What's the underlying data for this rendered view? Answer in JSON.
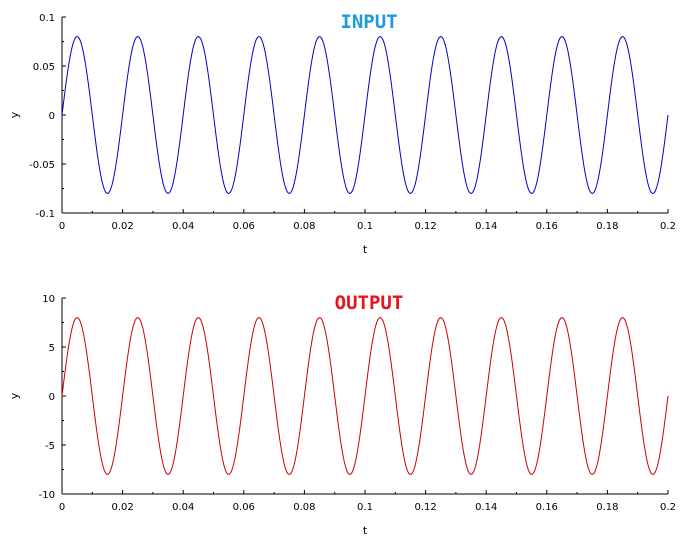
{
  "chart_data": [
    {
      "type": "line",
      "title": "INPUT",
      "title_color": "#1e9be0",
      "xlabel": "t",
      "ylabel": "y",
      "xlim": [
        0,
        0.2
      ],
      "ylim": [
        -0.1,
        0.1
      ],
      "x_ticks": [
        0,
        0.02,
        0.04,
        0.06,
        0.08,
        0.1,
        0.12,
        0.14,
        0.16,
        0.18,
        0.2
      ],
      "x_tick_labels": [
        "0",
        "0.02",
        "0.04",
        "0.06",
        "0.08",
        "0.1",
        "0.12",
        "0.14",
        "0.16",
        "0.18",
        "0.2"
      ],
      "y_ticks": [
        -0.1,
        -0.05,
        0,
        0.05,
        0.1
      ],
      "y_tick_labels": [
        "-0.1",
        "-0.05",
        "0",
        "0.05",
        "0.1"
      ],
      "grid": false,
      "series": [
        {
          "color": "#0000cc",
          "waveform": "sine",
          "amplitude": 0.08,
          "frequency_hz": 50,
          "t_range": [
            0,
            0.2
          ]
        }
      ]
    },
    {
      "type": "line",
      "title": "OUTPUT",
      "title_color": "#e8141e",
      "xlabel": "t",
      "ylabel": "y",
      "xlim": [
        0,
        0.2
      ],
      "ylim": [
        -10,
        10
      ],
      "x_ticks": [
        0,
        0.02,
        0.04,
        0.06,
        0.08,
        0.1,
        0.12,
        0.14,
        0.16,
        0.18,
        0.2
      ],
      "x_tick_labels": [
        "0",
        "0.02",
        "0.04",
        "0.06",
        "0.08",
        "0.1",
        "0.12",
        "0.14",
        "0.16",
        "0.18",
        "0.2"
      ],
      "y_ticks": [
        -10,
        -5,
        0,
        5,
        10
      ],
      "y_tick_labels": [
        "-10",
        "-5",
        "0",
        "5",
        "10"
      ],
      "grid": false,
      "series": [
        {
          "color": "#cc0000",
          "waveform": "sine",
          "amplitude": 8,
          "frequency_hz": 50,
          "t_range": [
            0,
            0.2
          ]
        }
      ]
    }
  ]
}
